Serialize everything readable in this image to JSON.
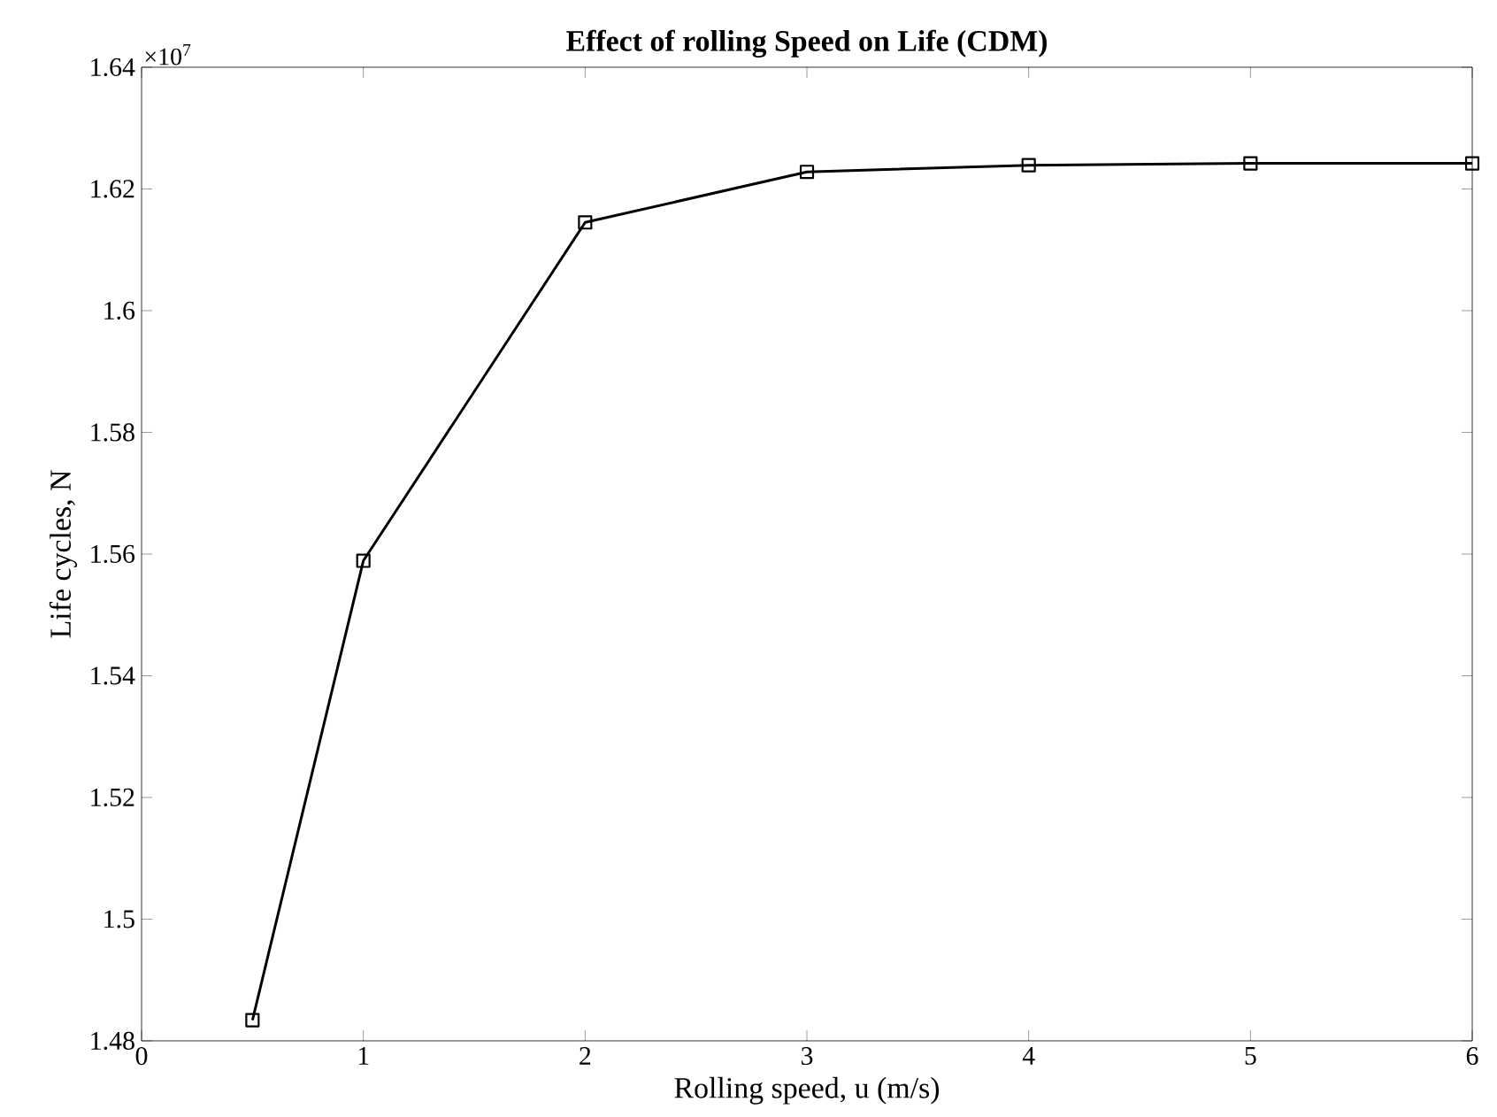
{
  "chart_data": {
    "type": "line",
    "title": "**Effect of rolling Speed on Life (CDM)**",
    "xlabel": "Rolling speed, u (m/s)",
    "ylabel": "Life cycles, N",
    "annotations": [
      "×10$^{7}$"
    ],
    "x": [
      0.5,
      1,
      2,
      3,
      4,
      5,
      6
    ],
    "series": [
      {
        "color": "#000000",
        "values": [
          1.4834,
          1.5589,
          1.6145,
          1.6228,
          1.6239,
          1.6242,
          1.6242
        ]
      }
    ],
    "xlim": [
      0,
      6
    ],
    "ylim": [
      1.48,
      1.64
    ],
    "xticks": [
      0,
      1,
      2,
      3,
      4,
      5,
      6
    ],
    "yticks": [
      1.48,
      1.5,
      1.52,
      1.54,
      1.56,
      1.58,
      1.6,
      1.62,
      1.64
    ],
    "grid": false,
    "marker": "square",
    "line_style": "solid"
  }
}
